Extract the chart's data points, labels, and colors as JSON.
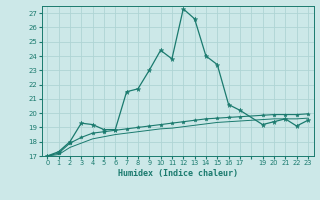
{
  "xlabel": "Humidex (Indice chaleur)",
  "ylabel": "",
  "bg_color": "#cce8e8",
  "grid_color": "#afd4d4",
  "line_color": "#1a7a6e",
  "xlim": [
    -0.5,
    23.5
  ],
  "ylim": [
    17,
    27.5
  ],
  "yticks": [
    17,
    18,
    19,
    20,
    21,
    22,
    23,
    24,
    25,
    26,
    27
  ],
  "xtick_positions": [
    0,
    1,
    2,
    3,
    4,
    5,
    6,
    7,
    8,
    9,
    10,
    11,
    12,
    13,
    14,
    15,
    16,
    17,
    18,
    19,
    20,
    21,
    22,
    23
  ],
  "xtick_labels": [
    "0",
    "1",
    "2",
    "3",
    "4",
    "5",
    "6",
    "7",
    "8",
    "9",
    "10",
    "11",
    "12",
    "13",
    "14",
    "15",
    "16",
    "17",
    "",
    "19",
    "20",
    "21",
    "22",
    "23"
  ],
  "line1_x": [
    0,
    1,
    2,
    3,
    4,
    5,
    6,
    7,
    8,
    9,
    10,
    11,
    12,
    13,
    14,
    15,
    16,
    17,
    19,
    20,
    21,
    22,
    23
  ],
  "line1_y": [
    17.0,
    17.3,
    18.0,
    19.3,
    19.2,
    18.85,
    18.85,
    21.5,
    21.7,
    23.0,
    24.4,
    23.8,
    27.3,
    26.6,
    24.0,
    23.4,
    20.6,
    20.2,
    19.2,
    19.4,
    19.6,
    19.1,
    19.5
  ],
  "line2_x": [
    0,
    1,
    2,
    3,
    4,
    5,
    6,
    7,
    8,
    9,
    10,
    11,
    12,
    13,
    14,
    15,
    16,
    17,
    19,
    20,
    21,
    22,
    23
  ],
  "line2_y": [
    17.0,
    17.2,
    17.9,
    18.3,
    18.6,
    18.7,
    18.8,
    18.9,
    19.0,
    19.1,
    19.2,
    19.3,
    19.4,
    19.5,
    19.6,
    19.65,
    19.7,
    19.75,
    19.85,
    19.9,
    19.9,
    19.9,
    19.95
  ],
  "line3_x": [
    0,
    1,
    2,
    3,
    4,
    5,
    6,
    7,
    8,
    9,
    10,
    11,
    12,
    13,
    14,
    15,
    16,
    17,
    19,
    20,
    21,
    22,
    23
  ],
  "line3_y": [
    17.0,
    17.1,
    17.6,
    17.9,
    18.2,
    18.35,
    18.5,
    18.6,
    18.7,
    18.8,
    18.9,
    18.95,
    19.05,
    19.15,
    19.25,
    19.35,
    19.4,
    19.45,
    19.55,
    19.6,
    19.6,
    19.6,
    19.65
  ]
}
